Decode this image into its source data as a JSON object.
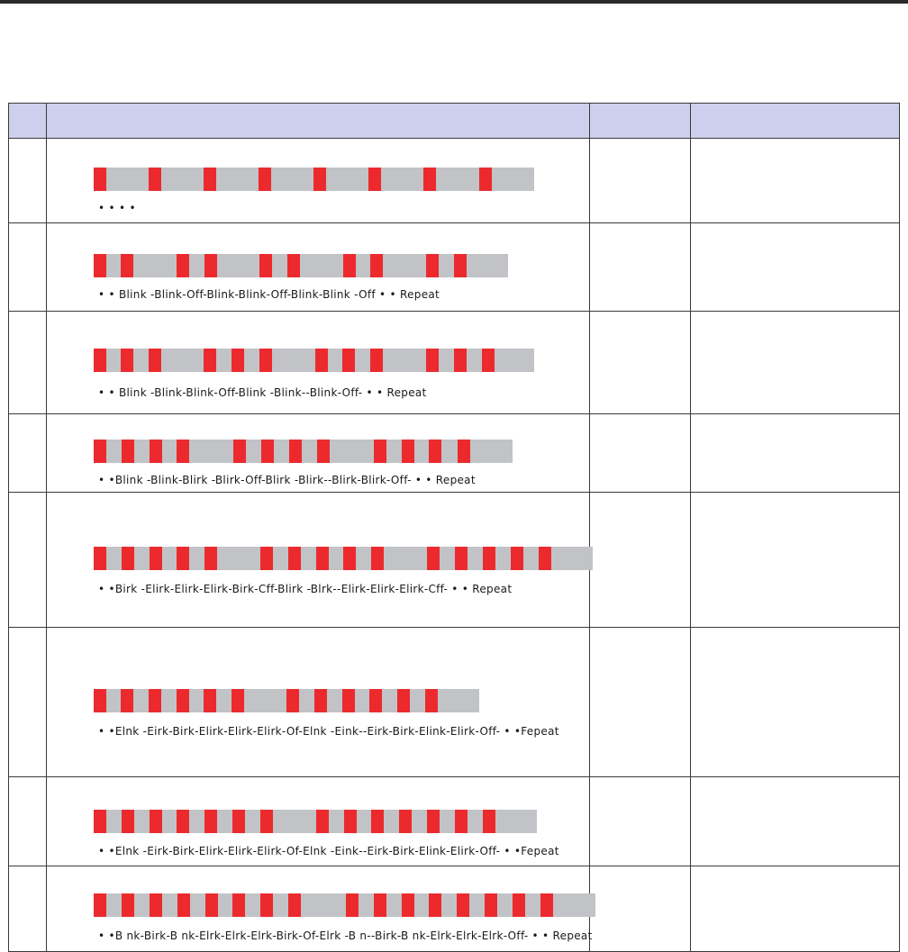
{
  "table": {
    "headers": [
      "",
      "",
      "",
      ""
    ],
    "rows": [
      {
        "caption": "• •                                                                  • •",
        "blink_count": 8,
        "pattern_bars": [
          0,
          0,
          0,
          0,
          0,
          0,
          0,
          0
        ]
      },
      {
        "caption": "• • Blink -Blink-Off-Blink-Blink-Off-Blink-Blink -Off • • Repeat",
        "blink_count": 10
      },
      {
        "caption": "• • Blink -Blink-Blink-Off-Blink -Blink--Blink-Off- • • Repeat",
        "blink_count": 12
      },
      {
        "caption": "• •Blink -Blink-Blirk -Blirk-Off-Blirk -Blirk--Blirk-Blirk-Off- • • Repeat",
        "blink_count": 12
      },
      {
        "caption": "• •Birk -Elirk-Elirk-Elirk-Birk-Cff-Blirk -Blrk--Elirk-Elirk-Elirk-Cff- • • Repeat",
        "blink_count": 15
      },
      {
        "caption": "• •Elnk -Eirk-Birk-Elirk-Elirk-Elirk-Of-Elnk -Eink--Eirk-Birk-Elink-Elirk-Off- • •Fepeat",
        "blink_count": 12
      },
      {
        "caption": "• •Elnk -Eirk-Birk-Elirk-Elirk-Elirk-Of-Elnk -Eink--Eirk-Birk-Elink-Elirk-Off- • •Fepeat",
        "blink_count": 14
      },
      {
        "caption": "• •B nk-Birk-B nk-Elrk-Elrk-Elrk-Birk-Of-Elrk -B n--Birk-B nk-Elrk-Elrk-Elrk-Off- • • Repeat",
        "blink_count": 16
      }
    ]
  },
  "colors": {
    "blink": "#ec2a2e",
    "off": "#c1c3c6",
    "header": "#cdd0ec"
  }
}
